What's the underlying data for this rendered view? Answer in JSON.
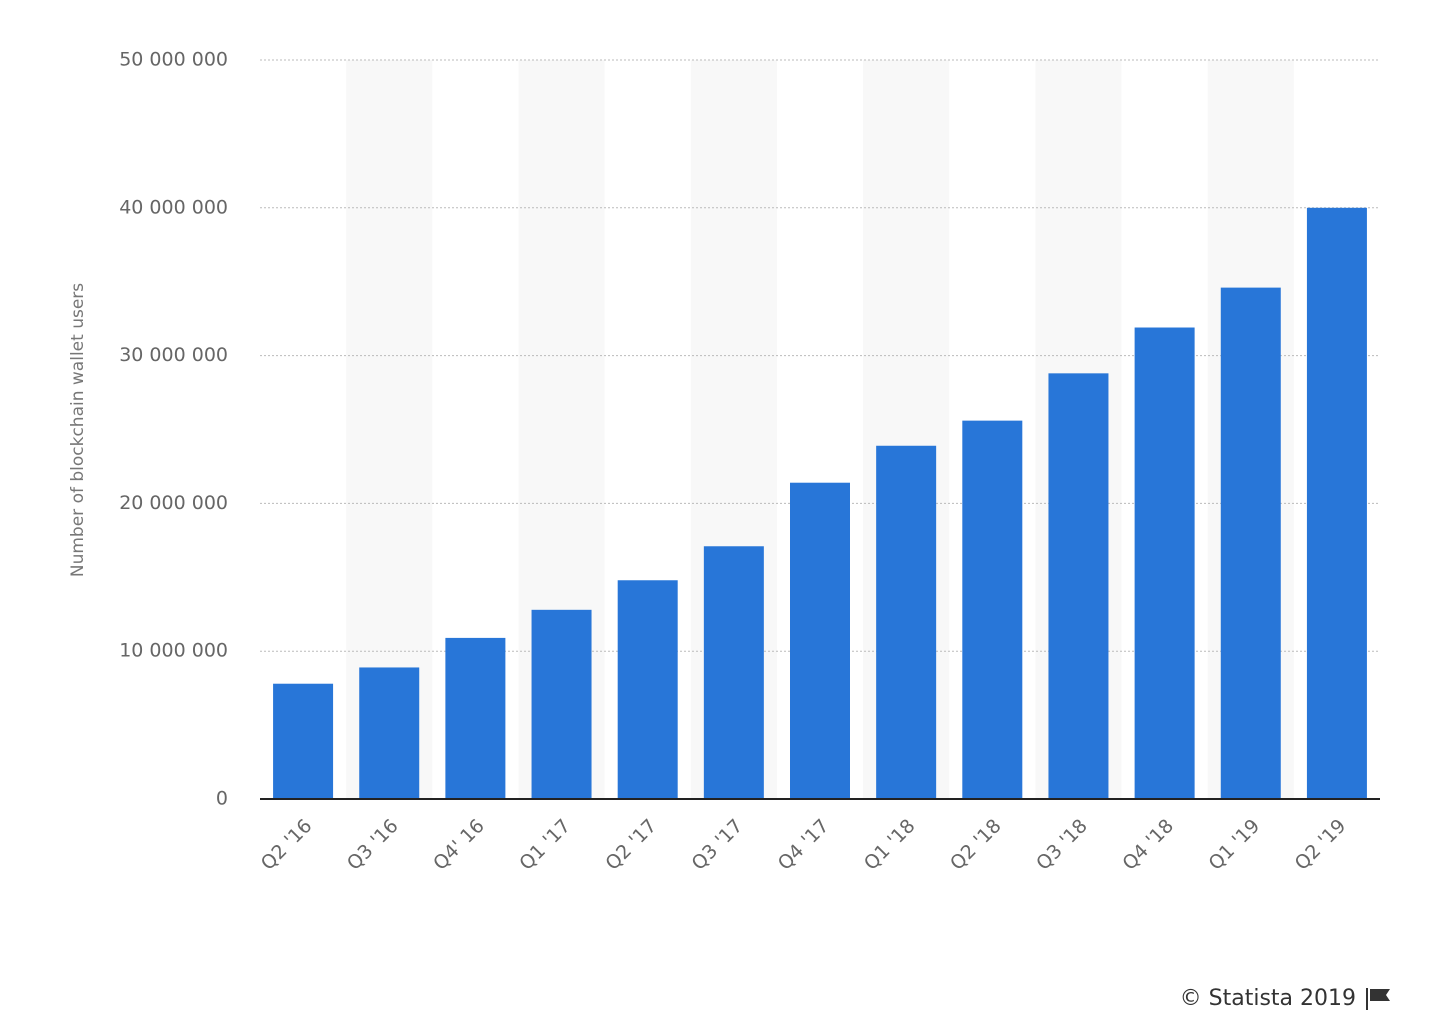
{
  "chart_data": {
    "type": "bar",
    "y_label": "Number of blockchain wallet users",
    "categories": [
      "Q2 '16",
      "Q3 '16",
      "Q4' 16",
      "Q1 '17",
      "Q2 '17",
      "Q3 '17",
      "Q4 '17",
      "Q1 '18",
      "Q2 '18",
      "Q3 '18",
      "Q4 '18",
      "Q1 '19",
      "Q2 '19"
    ],
    "values": [
      7800000,
      8900000,
      10900000,
      12800000,
      14800000,
      17100000,
      21400000,
      23900000,
      25600000,
      28800000,
      31900000,
      34600000,
      40000000
    ],
    "color": "#2876d8",
    "ylim": [
      0,
      50000000
    ],
    "yticks": [
      0,
      {
        "value": 10000000,
        "label": "10 000 000"
      },
      {
        "value": 20000000,
        "label": "20 000 000"
      },
      {
        "value": 30000000,
        "label": "30 000 000"
      },
      {
        "value": 40000000,
        "label": "40 000 000"
      },
      {
        "value": 50000000,
        "label": "50 000 000"
      }
    ],
    "grid": true,
    "source": "© Statista 2019"
  }
}
